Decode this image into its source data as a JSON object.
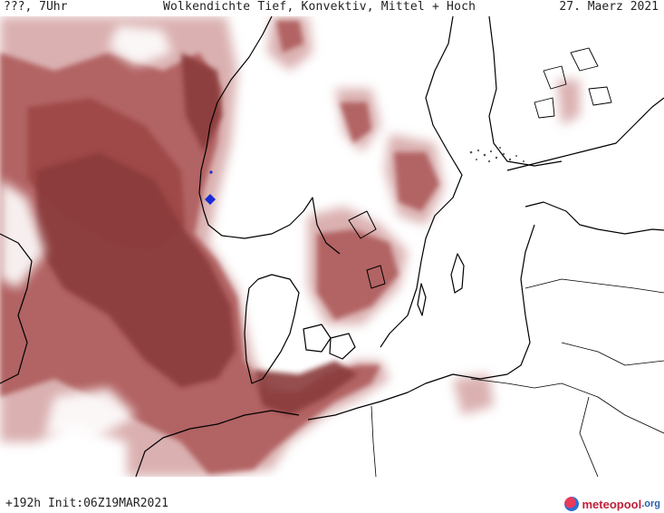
{
  "header": {
    "left_label": "???, 7Uhr",
    "title": "Wolkendichte  Tief, Konvektiv, Mittel + Hoch",
    "date": "27. Maerz 2021"
  },
  "footer": {
    "run_info": "+192h Init:06Z19MAR2021",
    "brand_name": "meteopool",
    "brand_tld": ".org"
  },
  "colors": {
    "cloud_dark": "#8a3a3a",
    "cloud_mid": "#b26464",
    "cloud_light": "#d4a3a3",
    "coastline": "#000000",
    "background": "#ffffff"
  },
  "map_region": "North Sea, Scandinavia and Baltic"
}
